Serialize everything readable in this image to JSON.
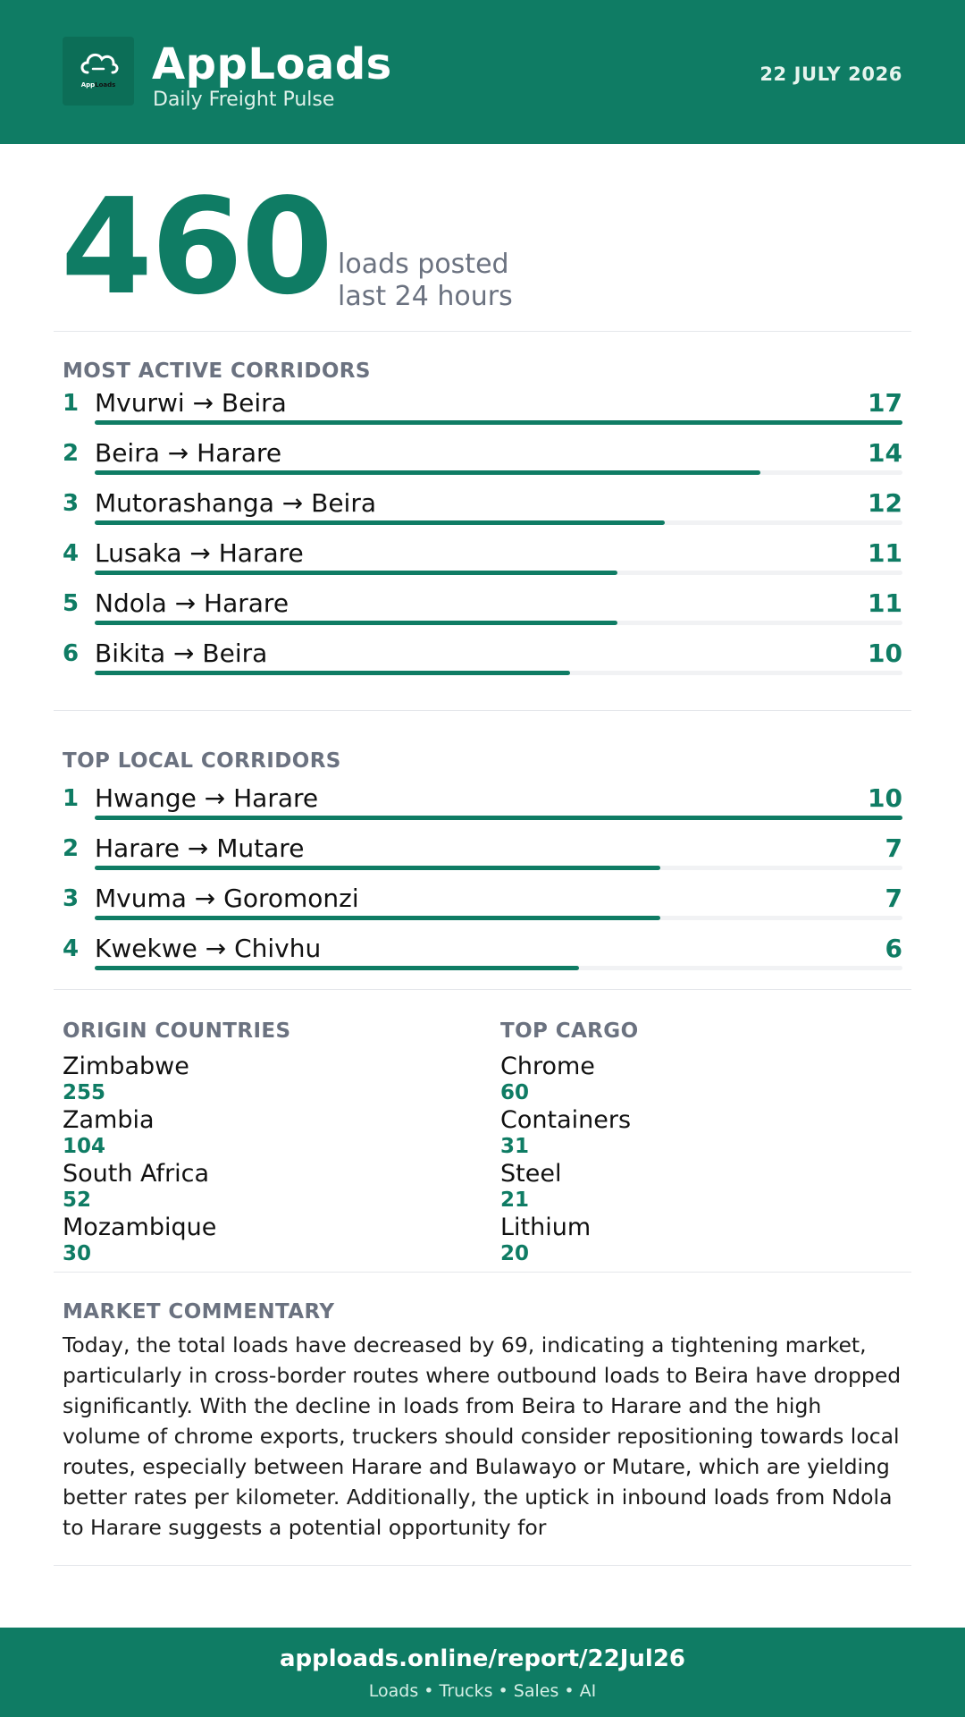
{
  "header": {
    "brand": "AppLoads",
    "subtitle": "Daily Freight Pulse",
    "date": "22 JULY 2026",
    "logo_text_a": "App",
    "logo_text_b": "Loads",
    "logo_icon": "cloud-truck-icon"
  },
  "hero": {
    "count": "460",
    "label_line1": "loads posted",
    "label_line2": "last 24 hours"
  },
  "most_active": {
    "title": "MOST ACTIVE CORRIDORS",
    "items": [
      {
        "rank": "1",
        "route": "Mvurwi → Beira",
        "count": "17",
        "share": 1.0
      },
      {
        "rank": "2",
        "route": "Beira → Harare",
        "count": "14",
        "share": 0.824
      },
      {
        "rank": "3",
        "route": "Mutorashanga → Beira",
        "count": "12",
        "share": 0.706
      },
      {
        "rank": "4",
        "route": "Lusaka → Harare",
        "count": "11",
        "share": 0.647
      },
      {
        "rank": "5",
        "route": "Ndola → Harare",
        "count": "11",
        "share": 0.647
      },
      {
        "rank": "6",
        "route": "Bikita → Beira",
        "count": "10",
        "share": 0.588
      }
    ]
  },
  "top_local": {
    "title": "TOP LOCAL CORRIDORS",
    "items": [
      {
        "rank": "1",
        "route": "Hwange → Harare",
        "count": "10",
        "share": 1.0
      },
      {
        "rank": "2",
        "route": "Harare → Mutare",
        "count": "7",
        "share": 0.7
      },
      {
        "rank": "3",
        "route": "Mvuma → Goromonzi",
        "count": "7",
        "share": 0.7
      },
      {
        "rank": "4",
        "route": "Kwekwe → Chivhu",
        "count": "6",
        "share": 0.6
      }
    ]
  },
  "origin_countries": {
    "title": "ORIGIN COUNTRIES",
    "items": [
      {
        "name": "Zimbabwe",
        "value": "255"
      },
      {
        "name": "Zambia",
        "value": "104"
      },
      {
        "name": "South Africa",
        "value": "52"
      },
      {
        "name": "Mozambique",
        "value": "30"
      }
    ]
  },
  "top_cargo": {
    "title": "TOP CARGO",
    "items": [
      {
        "name": "Chrome",
        "value": "60"
      },
      {
        "name": "Containers",
        "value": "31"
      },
      {
        "name": "Steel",
        "value": "21"
      },
      {
        "name": "Lithium",
        "value": "20"
      }
    ]
  },
  "commentary": {
    "title": "MARKET COMMENTARY",
    "text": "Today, the total loads have decreased by 69, indicating a tightening market, particularly in cross-border routes where outbound loads to Beira have dropped significantly. With the decline in loads from Beira to Harare and the high volume of chrome exports, truckers should consider repositioning towards local routes, especially between Harare and Bulawayo or Mutare, which are yielding better rates per kilometer. Additionally, the uptick in inbound loads from Ndola to Harare suggests a potential opportunity for"
  },
  "footer": {
    "url": "apploads.online/report/22Jul26",
    "tagline": "Loads • Trucks • Sales • AI"
  },
  "colors": {
    "brand": "#0f7c64",
    "muted": "#6b7280",
    "track": "#f1f2f4"
  }
}
